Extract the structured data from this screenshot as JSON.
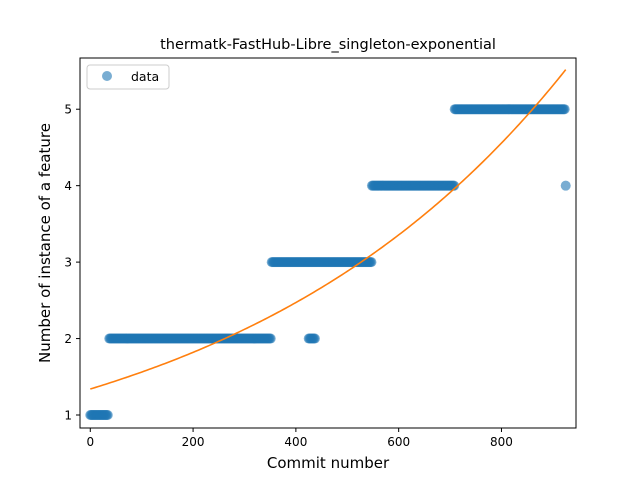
{
  "chart_data": {
    "type": "scatter",
    "title": "thermatk-FastHub-Libre_singleton-exponential",
    "xlabel": "Commit number",
    "ylabel": "Number of instance of a feature",
    "xlim": [
      -20,
      945
    ],
    "ylim": [
      0.83,
      5.67
    ],
    "xticks": [
      0,
      200,
      400,
      600,
      800
    ],
    "yticks": [
      1,
      2,
      3,
      4,
      5
    ],
    "grid": false,
    "legend": {
      "position": "top-left",
      "entries": [
        "data"
      ]
    },
    "series": [
      {
        "name": "data",
        "kind": "scatter",
        "color": "#1f77b4",
        "runs": [
          {
            "y": 1,
            "x_start": 0,
            "x_end": 35
          },
          {
            "y": 2,
            "x_start": 37,
            "x_end": 352
          },
          {
            "y": 2,
            "x_start": 425,
            "x_end": 437
          },
          {
            "y": 3,
            "x_start": 353,
            "x_end": 547
          },
          {
            "y": 4,
            "x_start": 548,
            "x_end": 708
          },
          {
            "y": 4,
            "x_start": 925,
            "x_end": 925
          },
          {
            "y": 5,
            "x_start": 709,
            "x_end": 924
          }
        ]
      },
      {
        "kind": "line",
        "color": "#ff7f0e",
        "model": "exponential",
        "a": 1.34,
        "b": 0.00153,
        "x_range": [
          0,
          925
        ]
      }
    ]
  }
}
